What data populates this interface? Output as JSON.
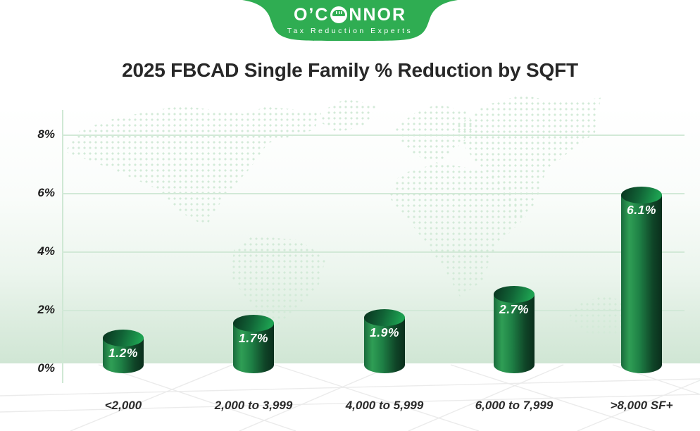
{
  "logo": {
    "name_part1": "O’C",
    "name_part2": "NNOR",
    "full_name": "O’CONNOR",
    "tagline": "Tax Reduction Experts",
    "brand_green": "#2fad52"
  },
  "title": "2025 FBCAD Single Family % Reduction by SQFT",
  "chart_data": {
    "type": "bar",
    "style": "3d-cylinder",
    "title": "2025 FBCAD Single Family % Reduction by SQFT",
    "categories": [
      "<2,000",
      "2,000 to 3,999",
      "4,000 to 5,999",
      "6,000 to 7,999",
      ">8,000 SF+"
    ],
    "values": [
      1.2,
      1.7,
      1.9,
      2.7,
      6.1
    ],
    "value_labels": [
      "1.2%",
      "1.7%",
      "1.9%",
      "2.7%",
      "6.1%"
    ],
    "xlabel": "",
    "ylabel": "",
    "ylim": [
      0,
      8
    ],
    "yticks": [
      {
        "value": 8,
        "label": "8%"
      },
      {
        "value": 6,
        "label": "6%"
      },
      {
        "value": 4,
        "label": "4%"
      },
      {
        "value": 2,
        "label": "2%"
      },
      {
        "value": 0,
        "label": "0%"
      }
    ],
    "grid": "horizontal",
    "legend": "none",
    "colors": {
      "bar_highlight": "#2f9e55",
      "bar_shadow": "#0a2e1c",
      "gridline": "#d2e9d7",
      "background_band": "#d0e6d4",
      "map_dots": "#d3ead8",
      "floor_lines": "#e9e9e9"
    }
  }
}
